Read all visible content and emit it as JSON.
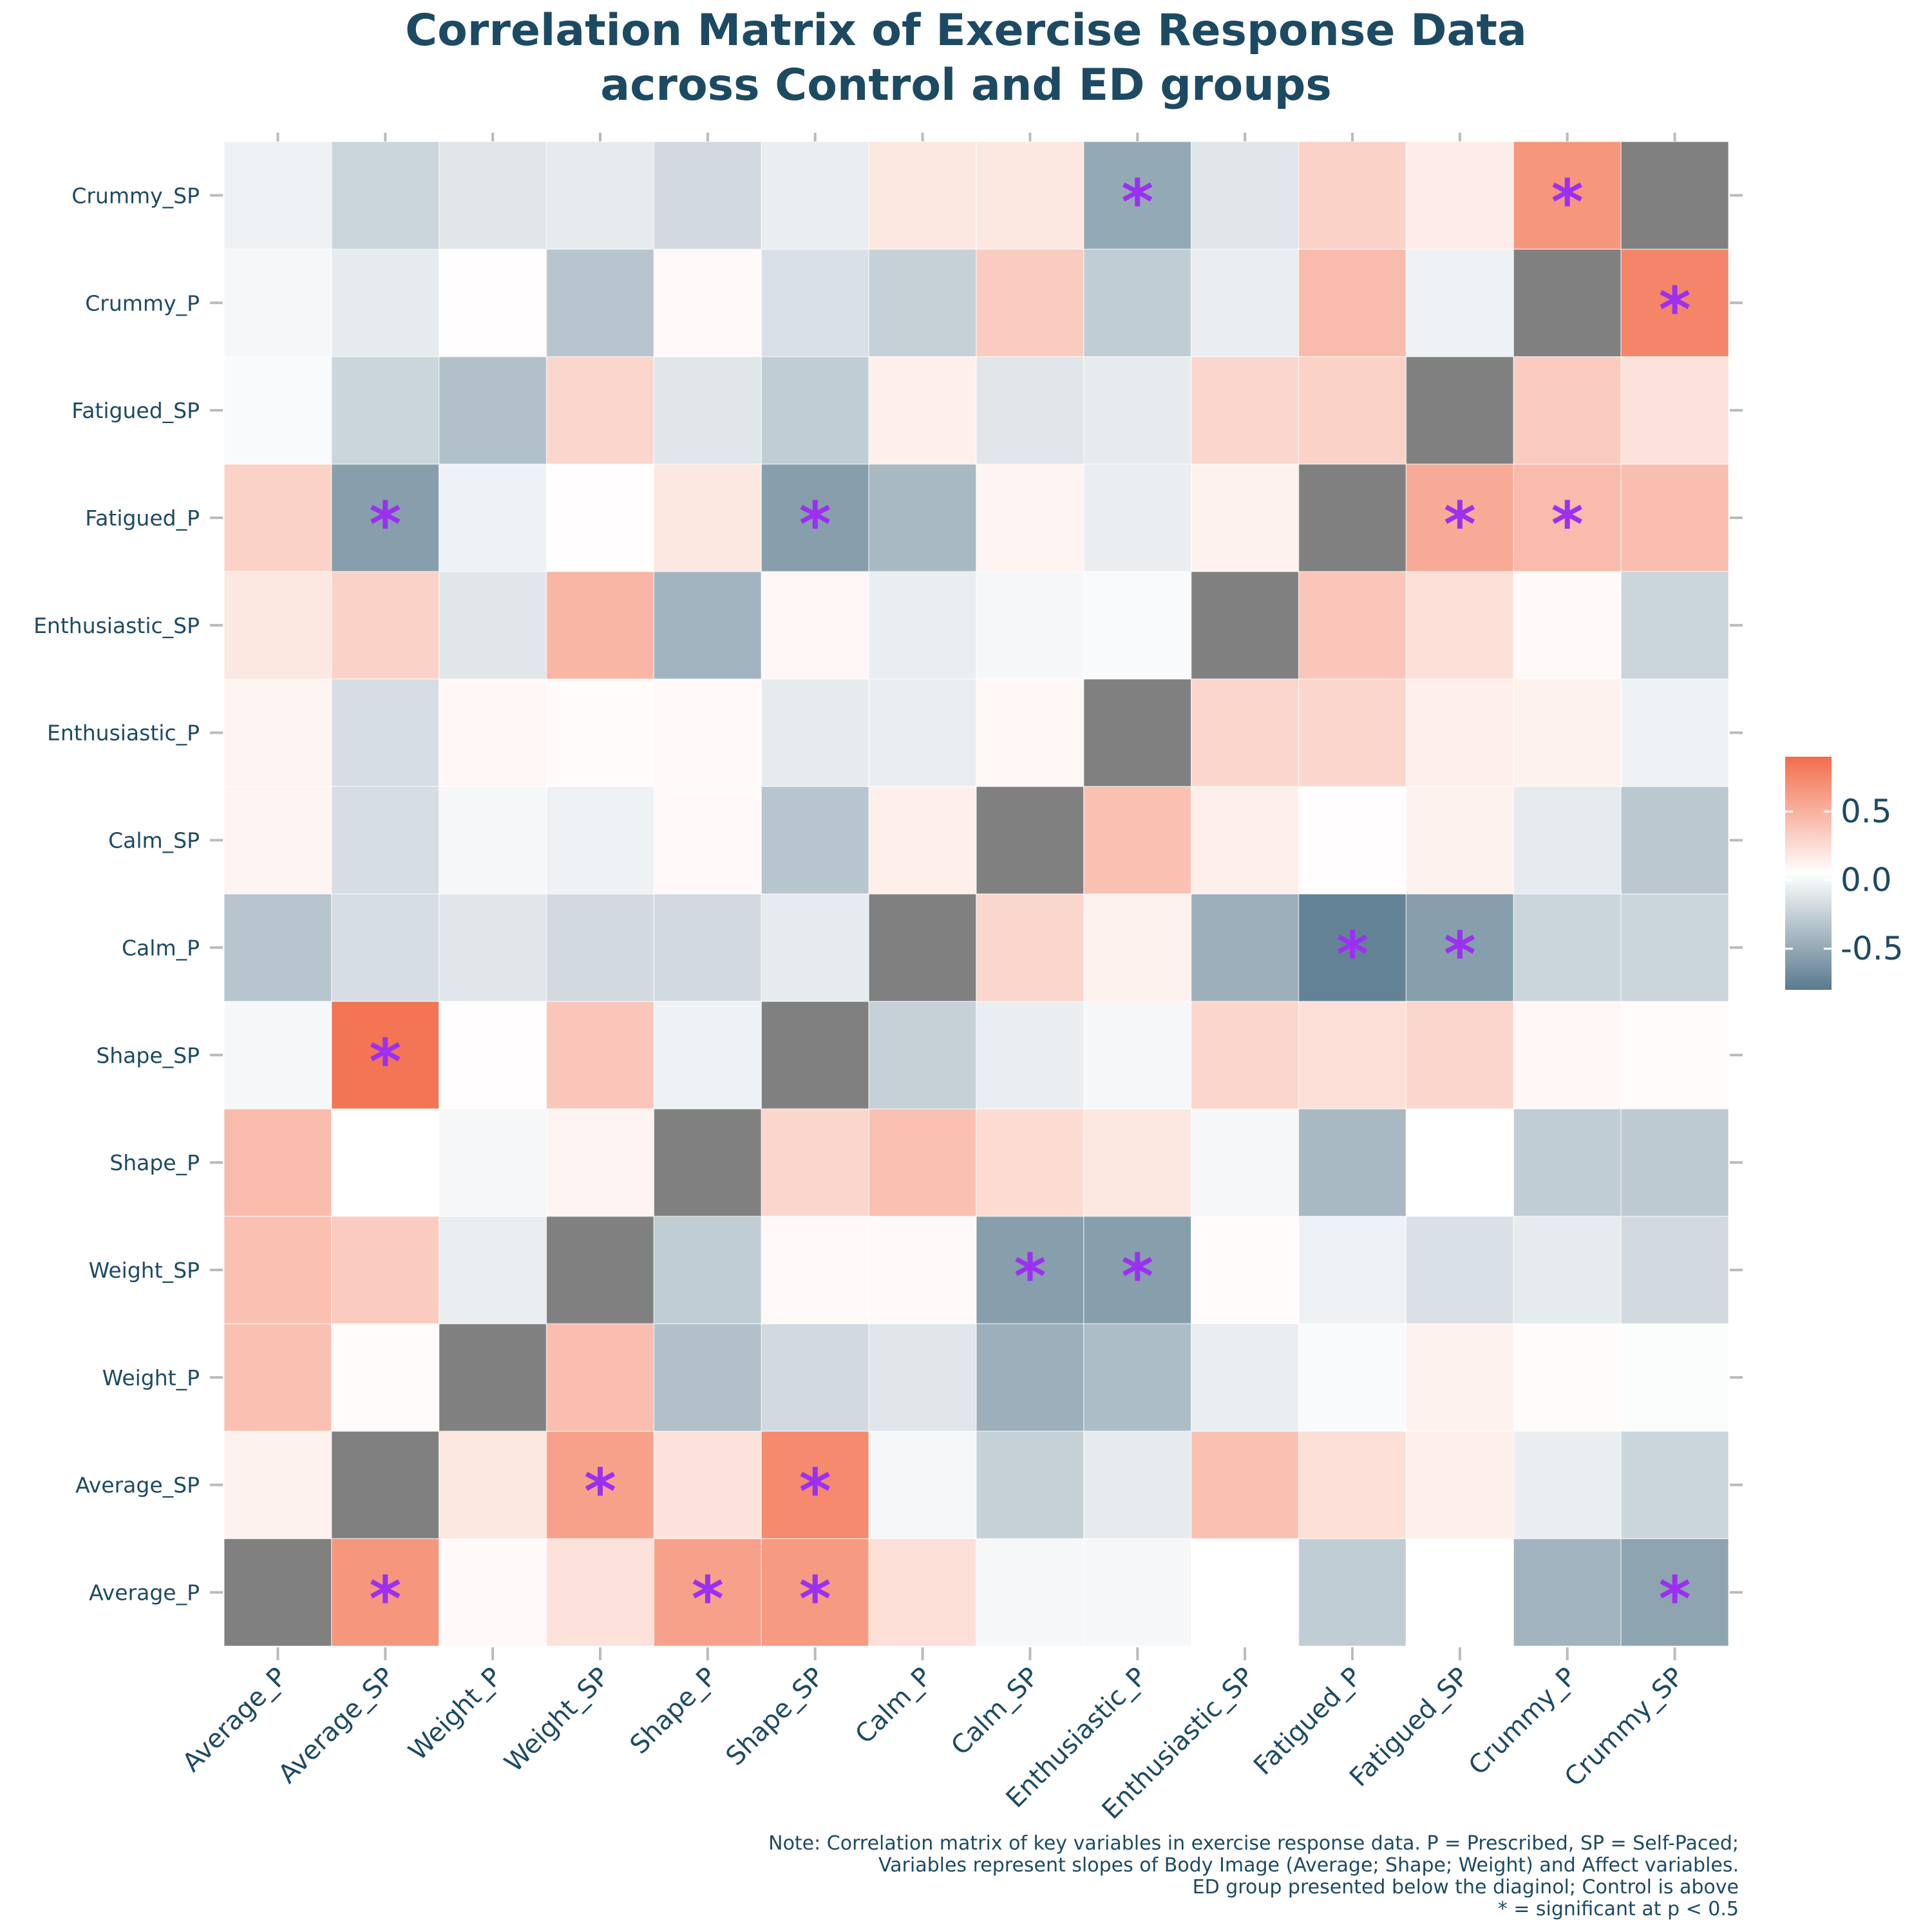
{
  "chart_data": {
    "type": "heatmap",
    "title": [
      "Correlation Matrix of Exercise Response Data",
      "across Control and ED groups"
    ],
    "variables": [
      "Average_P",
      "Average_SP",
      "Weight_P",
      "Weight_SP",
      "Shape_P",
      "Shape_SP",
      "Calm_P",
      "Calm_SP",
      "Enthusiastic_P",
      "Enthusiastic_SP",
      "Fatigued_P",
      "Fatigued_SP",
      "Crummy_P",
      "Crummy_SP"
    ],
    "rows_bottom_to_top": [
      "Average_P",
      "Average_SP",
      "Weight_P",
      "Weight_SP",
      "Shape_P",
      "Shape_SP",
      "Calm_P",
      "Calm_SP",
      "Enthusiastic_P",
      "Enthusiastic_SP",
      "Fatigued_P",
      "Fatigued_SP",
      "Crummy_P",
      "Crummy_SP"
    ],
    "values": [
      [
        null,
        0.65,
        0.03,
        0.18,
        0.58,
        0.62,
        0.2,
        -0.05,
        -0.05,
        0,
        -0.3,
        0,
        -0.45,
        -0.55
      ],
      [
        0.08,
        null,
        0.15,
        0.58,
        0.18,
        0.72,
        -0.05,
        -0.28,
        -0.12,
        0.38,
        0.2,
        0.1,
        -0.1,
        -0.25
      ],
      [
        0.38,
        0.02,
        null,
        0.4,
        -0.38,
        -0.22,
        -0.15,
        -0.48,
        -0.4,
        -0.1,
        -0.03,
        0.08,
        0.02,
        -0.02
      ],
      [
        0.38,
        0.32,
        -0.1,
        null,
        -0.3,
        0.03,
        0.03,
        -0.58,
        -0.58,
        0.02,
        -0.08,
        -0.18,
        -0.12,
        -0.22
      ],
      [
        0.42,
        0,
        -0.05,
        0.06,
        null,
        0.25,
        0.38,
        0.22,
        0.15,
        -0.05,
        -0.42,
        0,
        -0.3,
        -0.32
      ],
      [
        -0.05,
        0.85,
        0.01,
        0.35,
        -0.08,
        null,
        -0.28,
        -0.1,
        -0.05,
        0.25,
        0.2,
        0.25,
        0.05,
        0.02
      ],
      [
        -0.35,
        -0.2,
        -0.15,
        -0.22,
        -0.22,
        -0.12,
        null,
        0.25,
        0.08,
        -0.48,
        -0.75,
        -0.58,
        -0.25,
        -0.25
      ],
      [
        0.07,
        -0.2,
        -0.05,
        -0.08,
        0.03,
        -0.35,
        0.1,
        null,
        0.38,
        0.1,
        0.01,
        0.08,
        -0.12,
        -0.33
      ],
      [
        0.07,
        -0.2,
        0.05,
        0.02,
        0.03,
        -0.12,
        -0.1,
        0.05,
        null,
        0.25,
        0.25,
        0.1,
        0.08,
        -0.08
      ],
      [
        0.15,
        0.28,
        -0.15,
        0.45,
        -0.45,
        0.05,
        -0.1,
        -0.05,
        -0.03,
        null,
        0.35,
        0.2,
        0.03,
        -0.25
      ],
      [
        0.28,
        -0.58,
        -0.08,
        0.01,
        0.15,
        -0.58,
        -0.42,
        0.07,
        -0.1,
        0.08,
        null,
        0.52,
        0.42,
        0.4
      ],
      [
        -0.03,
        -0.25,
        -0.38,
        0.25,
        -0.15,
        -0.3,
        0.1,
        -0.15,
        -0.12,
        0.25,
        0.28,
        null,
        0.32,
        0.18
      ],
      [
        -0.05,
        -0.12,
        0.01,
        -0.35,
        0.03,
        -0.18,
        -0.28,
        0.32,
        -0.3,
        -0.1,
        0.42,
        -0.08,
        null,
        0.75
      ],
      [
        -0.08,
        -0.25,
        -0.15,
        -0.12,
        -0.22,
        -0.1,
        0.15,
        0.15,
        -0.52,
        -0.15,
        0.28,
        0.12,
        0.65,
        null
      ]
    ],
    "significant_cells_row_col": [
      [
        0,
        1
      ],
      [
        0,
        4
      ],
      [
        0,
        5
      ],
      [
        0,
        13
      ],
      [
        1,
        3
      ],
      [
        1,
        5
      ],
      [
        3,
        7
      ],
      [
        3,
        8
      ],
      [
        5,
        1
      ],
      [
        6,
        10
      ],
      [
        6,
        11
      ],
      [
        10,
        1
      ],
      [
        10,
        5
      ],
      [
        10,
        11
      ],
      [
        10,
        12
      ],
      [
        12,
        13
      ],
      [
        13,
        8
      ],
      [
        13,
        12
      ]
    ],
    "star_symbol": "*",
    "diagonal_color": "#808080",
    "color_scale": {
      "low": "#5a7a8e",
      "mid": "#ffffff",
      "high": "#f26d4a",
      "domain": [
        -0.8,
        0.9
      ]
    },
    "legend": {
      "ticks": [
        "0.5",
        "0.0",
        "-0.5"
      ],
      "tick_values": [
        0.5,
        0,
        -0.5
      ],
      "placement": "right"
    },
    "note": [
      "Note: Correlation matrix of key variables in exercise response data. P = Prescribed, SP = Self-Paced;",
      "Variables represent slopes of Body Image (Average; Shape; Weight) and Affect variables.",
      "ED group presented below the diaginol; Control is above",
      "* = significant at p < 0.5"
    ]
  }
}
